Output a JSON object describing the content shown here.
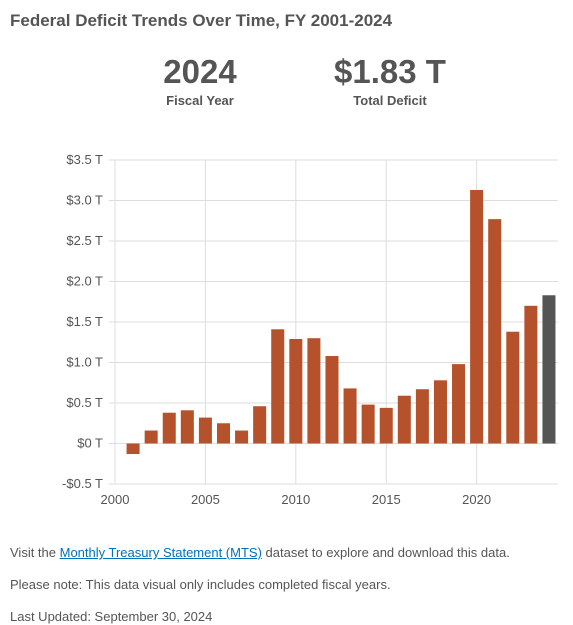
{
  "title": "Federal Deficit Trends Over Time, FY 2001-2024",
  "highlight": {
    "year_value": "2024",
    "year_label": "Fiscal Year",
    "deficit_value": "$1.83 T",
    "deficit_label": "Total Deficit"
  },
  "colors": {
    "bar": "#b5522b",
    "highlight_bar": "#555555",
    "grid": "#dddddd",
    "text": "#555555",
    "link": "#0071bc"
  },
  "chart_data": {
    "type": "bar",
    "categories": [
      "2001",
      "2002",
      "2003",
      "2004",
      "2005",
      "2006",
      "2007",
      "2008",
      "2009",
      "2010",
      "2011",
      "2012",
      "2013",
      "2014",
      "2015",
      "2016",
      "2017",
      "2018",
      "2019",
      "2020",
      "2021",
      "2022",
      "2023",
      "2024"
    ],
    "values": [
      -0.13,
      0.16,
      0.38,
      0.41,
      0.32,
      0.25,
      0.16,
      0.46,
      1.41,
      1.29,
      1.3,
      1.08,
      0.68,
      0.48,
      0.44,
      0.59,
      0.67,
      0.78,
      0.98,
      3.13,
      2.77,
      1.38,
      1.7,
      1.83
    ],
    "highlight_category": "2024",
    "x_ticks": [
      2000,
      2005,
      2010,
      2015,
      2020
    ],
    "y_ticks": [
      -0.5,
      0,
      0.5,
      1.0,
      1.5,
      2.0,
      2.5,
      3.0,
      3.5
    ],
    "y_tick_labels": [
      "-$0.5 T",
      "$0 T",
      "$0.5 T",
      "$1.0 T",
      "$1.5 T",
      "$2.0 T",
      "$2.5 T",
      "$3.0 T",
      "$3.5 T"
    ],
    "xlim": [
      2000,
      2024.5
    ],
    "ylim": [
      -0.5,
      3.5
    ],
    "grid": true,
    "xlabel": "",
    "ylabel": ""
  },
  "footer": {
    "visit_prefix": "Visit the ",
    "link_text": "Monthly Treasury Statement (MTS)",
    "visit_suffix": " dataset to explore and download this data.",
    "note": "Please note: This data visual only includes completed fiscal years.",
    "last_updated": "Last Updated: September 30, 2024"
  }
}
